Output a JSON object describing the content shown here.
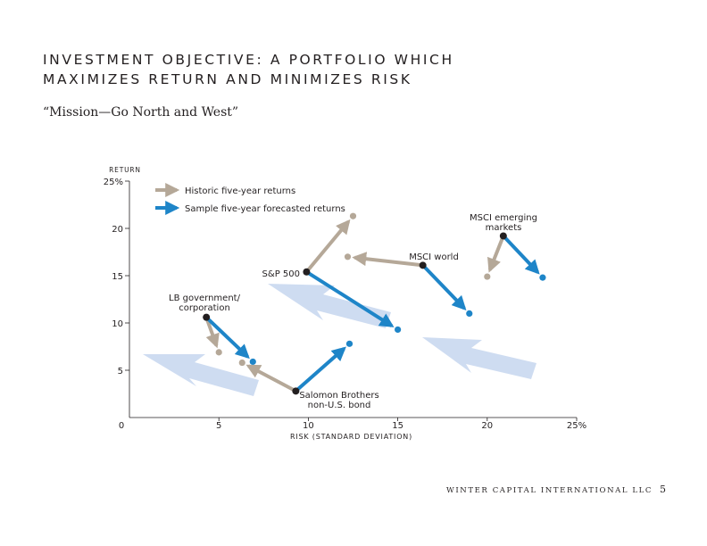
{
  "header": {
    "title_line1": "INVESTMENT OBJECTIVE: A PORTFOLIO WHICH",
    "title_line2": "MAXIMIZES RETURN AND MINIMIZES RISK",
    "subtitle": "“Mission—Go North and West”"
  },
  "footer": {
    "company": "WINTER CAPITAL INTERNATIONAL LLC",
    "page_number": "5"
  },
  "colors": {
    "historic": "#b5a898",
    "forecast": "#1e85c8",
    "direction_arrows": "#c6d6ef",
    "start_point": "#231f20",
    "axis": "#231f20"
  },
  "chart_data": {
    "type": "scatter",
    "xlabel": "RISK (STANDARD DEVIATION)",
    "ylabel": "RETURN",
    "xlim": [
      0,
      25
    ],
    "ylim": [
      0,
      25
    ],
    "x_ticks": [
      {
        "value": 0,
        "label": "0"
      },
      {
        "value": 5,
        "label": "5"
      },
      {
        "value": 10,
        "label": "10"
      },
      {
        "value": 15,
        "label": "15"
      },
      {
        "value": 20,
        "label": "20"
      },
      {
        "value": 25,
        "label": "25%"
      }
    ],
    "y_ticks": [
      {
        "value": 5,
        "label": "5"
      },
      {
        "value": 10,
        "label": "10"
      },
      {
        "value": 15,
        "label": "15"
      },
      {
        "value": 20,
        "label": "20"
      },
      {
        "value": 25,
        "label": "25%"
      }
    ],
    "legend": [
      {
        "key": "historic",
        "label": "Historic five-year returns"
      },
      {
        "key": "forecast",
        "label": "Sample five-year forecasted returns"
      }
    ],
    "legend_position": "top-left",
    "assets": [
      {
        "name": "LB government/ corporation",
        "label_lines": [
          "LB government/",
          "corporation"
        ],
        "start": [
          4.3,
          10.6
        ],
        "historic": [
          5.0,
          6.9
        ],
        "forecast": [
          6.9,
          5.9
        ]
      },
      {
        "name": "Salomon Brothers non-U.S. bond",
        "label_lines": [
          "Salomon Brothers",
          "non-U.S. bond"
        ],
        "start": [
          9.3,
          2.8
        ],
        "historic": [
          6.3,
          5.8
        ],
        "forecast": [
          12.3,
          7.8
        ]
      },
      {
        "name": "S&P 500",
        "label_lines": [
          "S&P 500"
        ],
        "start": [
          9.9,
          15.4
        ],
        "historic": [
          12.5,
          21.3
        ],
        "forecast": [
          15.0,
          9.3
        ]
      },
      {
        "name": "MSCI world",
        "label_lines": [
          "MSCI world"
        ],
        "start": [
          16.4,
          16.1
        ],
        "historic": [
          12.2,
          17.0
        ],
        "forecast": [
          19.0,
          11.0
        ]
      },
      {
        "name": "MSCI emerging markets",
        "label_lines": [
          "MSCI emerging",
          "markets"
        ],
        "start": [
          20.9,
          19.2
        ],
        "historic": [
          20.0,
          14.9
        ],
        "forecast": [
          23.1,
          14.8
        ]
      }
    ]
  }
}
